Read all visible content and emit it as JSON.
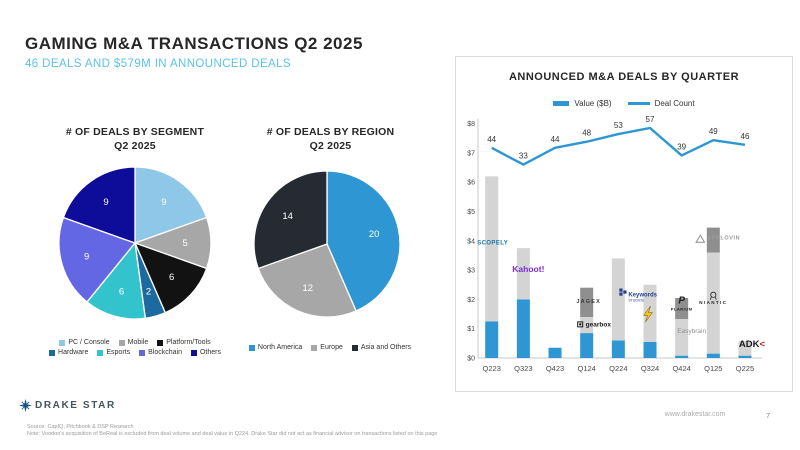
{
  "slide": {
    "title": "GAMING M&A TRANSACTIONS Q2 2025",
    "subtitle": "46 DEALS AND $579M IN ANNOUNCED DEALS",
    "logo_text": "DRAKE STAR",
    "source_line": "Source: CapIQ, Pitchbook & DSP Research",
    "note_line": "Note: Voodoo's acquisition of BeReal is excluded from deal volume and deal value in Q224. Drake Star did not act as financial advisor on transactions listed on this page",
    "website": "www.drakestar.com",
    "page_number": "7"
  },
  "colors": {
    "accent_blue": "#2E96D3",
    "light_blue": "#5BC2E7",
    "bar_gray": "#D4D4D4",
    "bar_dark_gray": "#8F8F8F",
    "text_dark": "#272727",
    "text_gray": "#9B9B9B"
  },
  "chart_data": [
    {
      "type": "pie",
      "name": "deals-by-segment",
      "title": "# OF DEALS BY SEGMENT",
      "subtitle": "Q2 2025",
      "labels": [
        "PC / Console",
        "Mobile",
        "Platform/Tools",
        "Hardware",
        "Esports",
        "Blockchain",
        "Others"
      ],
      "values": [
        9,
        5,
        6,
        2,
        6,
        9,
        9
      ],
      "colors": [
        "#8FC7E8",
        "#A7A7A7",
        "#121212",
        "#1D6B9E",
        "#33C3CD",
        "#6467E4",
        "#0D0D99"
      ],
      "legend_rows": [
        [
          0,
          1,
          2
        ],
        [
          3,
          4,
          5,
          6
        ]
      ],
      "legend_position": "bottom"
    },
    {
      "type": "pie",
      "name": "deals-by-region",
      "title": "# OF DEALS BY REGION",
      "subtitle": "Q2 2025",
      "labels": [
        "North America",
        "Europe",
        "Asia and Others"
      ],
      "values": [
        20,
        12,
        14
      ],
      "colors": [
        "#2E96D3",
        "#A7A7A7",
        "#262B33"
      ],
      "legend_rows": [
        [
          0,
          1,
          2
        ]
      ],
      "legend_position": "bottom"
    },
    {
      "type": "bar",
      "name": "announced-deals-by-quarter",
      "title": "ANNOUNCED M&A DEALS BY QUARTER",
      "legend": [
        "Value ($B)",
        "Deal Count"
      ],
      "categories": [
        "Q223",
        "Q323",
        "Q423",
        "Q124",
        "Q224",
        "Q324",
        "Q424",
        "Q125",
        "Q225"
      ],
      "ylim": [
        0,
        8
      ],
      "y_ticks": [
        "$0",
        "$1",
        "$2",
        "$3",
        "$4",
        "$5",
        "$6",
        "$7",
        "$8"
      ],
      "grid": false,
      "bars": [
        {
          "q": "Q223",
          "segments": [
            {
              "c": "value",
              "v": 1.25
            },
            {
              "c": "gray",
              "v": 4.95
            }
          ]
        },
        {
          "q": "Q323",
          "segments": [
            {
              "c": "value",
              "v": 2.0
            },
            {
              "c": "gray",
              "v": 1.75
            }
          ]
        },
        {
          "q": "Q423",
          "segments": [
            {
              "c": "value",
              "v": 0.35
            }
          ]
        },
        {
          "q": "Q124",
          "segments": [
            {
              "c": "value",
              "v": 0.85
            },
            {
              "c": "gray",
              "v": 0.55
            },
            {
              "c": "dark",
              "v": 1.0
            }
          ]
        },
        {
          "q": "Q224",
          "segments": [
            {
              "c": "value",
              "v": 0.6
            },
            {
              "c": "gray",
              "v": 2.8
            }
          ]
        },
        {
          "q": "Q324",
          "segments": [
            {
              "c": "value",
              "v": 0.55
            },
            {
              "c": "gray",
              "v": 1.95
            }
          ]
        },
        {
          "q": "Q424",
          "segments": [
            {
              "c": "value",
              "v": 0.08
            },
            {
              "c": "gray",
              "v": 1.25
            },
            {
              "c": "dark",
              "v": 0.72
            }
          ]
        },
        {
          "q": "Q125",
          "segments": [
            {
              "c": "value",
              "v": 0.15
            },
            {
              "c": "gray",
              "v": 3.45
            },
            {
              "c": "dark",
              "v": 0.85
            }
          ]
        },
        {
          "q": "Q225",
          "segments": [
            {
              "c": "value",
              "v": 0.08
            },
            {
              "c": "gray",
              "v": 0.5
            }
          ]
        }
      ],
      "deal_counts": [
        44,
        33,
        44,
        48,
        53,
        57,
        39,
        49,
        46
      ],
      "count_line_map": {
        "c1": 33,
        "y1": 6.6,
        "c2": 57,
        "y2": 7.85
      },
      "logos": [
        {
          "name": "scopely",
          "q": 0,
          "dx": 1,
          "y": 3.88,
          "text": "SCOPELY",
          "size": 6,
          "bold": true,
          "color": "#1777A8",
          "spacing": 0.4
        },
        {
          "name": "kahoot",
          "q": 1,
          "dx": 5,
          "y": 2.93,
          "text": "Kahoot!",
          "size": 8.5,
          "bold": true,
          "color": "#7D2BCF"
        },
        {
          "name": "jagex",
          "q": 3,
          "dx": 2,
          "y": 1.88,
          "text": "JAGEX",
          "size": 5.5,
          "bold": true,
          "color": "#3A3A3A",
          "spacing": 1.2
        },
        {
          "name": "gearbox",
          "q": 3,
          "dx": -1,
          "y": 1.08,
          "icon": "gbox",
          "text": "gearbox",
          "size": 6.5,
          "bold": true,
          "color": "#1A1A1A",
          "tx": 0,
          "anchor": "start"
        },
        {
          "name": "keywords-studios",
          "q": 4,
          "dx": 2,
          "y": 2.1,
          "icon": "ksquares",
          "text": "Keywords",
          "size": 6,
          "bold": true,
          "color": "#24418E",
          "tx": 8,
          "anchor": "start",
          "sub": "STUDIOS",
          "subx": 8,
          "suby": 5
        },
        {
          "name": "lightning",
          "q": 5,
          "dx": -2,
          "y": 1.5,
          "icon": "bolt"
        },
        {
          "name": "plarium",
          "q": 6,
          "dx": 0,
          "y": 1.72,
          "icon": "p",
          "text": "PLARIUM",
          "size": 4,
          "bold": true,
          "color": "#1E1E1E",
          "ty": 3,
          "spacing": 0.5
        },
        {
          "name": "easybrain",
          "q": 6,
          "dx": 10,
          "y": 0.85,
          "text": "Easybrain",
          "size": 6.5,
          "color": "#8F8F8F"
        },
        {
          "name": "niantic",
          "q": 7,
          "dx": 0,
          "y": 1.85,
          "icon": "doodle",
          "text": "NIANTIC",
          "size": 4.5,
          "bold": true,
          "color": "#222222",
          "spacing": 1.4
        },
        {
          "name": "applovin",
          "q": 7,
          "dx": -13,
          "y": 4.05,
          "icon": "triangle",
          "text": "APPLOVIN",
          "size": 5.5,
          "bold": true,
          "color": "#9A9A9A",
          "tx": 7,
          "anchor": "start",
          "spacing": 0.6
        },
        {
          "name": "adk",
          "q": 8,
          "dx": 7,
          "y": 0.38,
          "text": "ADK",
          "text2": "<",
          "color2": "#CC2327",
          "size": 9.5,
          "bold": true,
          "color": "#1A1A1A"
        }
      ]
    }
  ]
}
